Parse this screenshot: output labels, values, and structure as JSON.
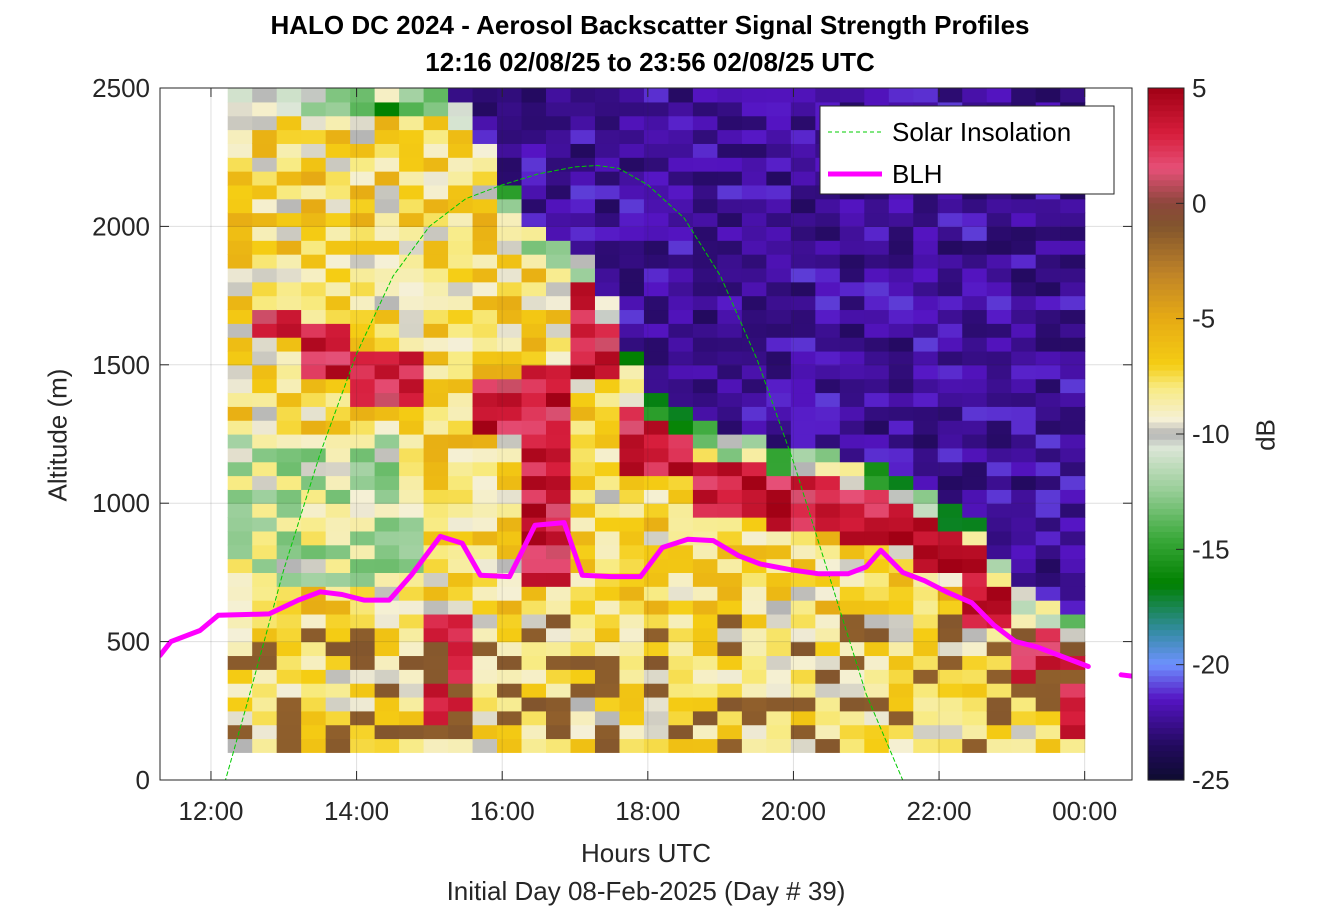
{
  "chart_data": {
    "type": "heatmap",
    "title": "HALO DC 2024 - Aerosol Backscatter Signal Strength Profiles",
    "subtitle": "12:16 02/08/25 to 23:56 02/08/25  UTC",
    "xlabel": "Hours UTC",
    "xlabel2": "Initial Day 08-Feb-2025 (Day # 39)",
    "ylabel": "Altitude (m)",
    "colorbar_label": "dB",
    "xlim": [
      11.3,
      24.65
    ],
    "ylim": [
      0,
      2500
    ],
    "x_ticks": [
      12,
      14,
      16,
      18,
      20,
      22,
      24
    ],
    "x_tick_labels": [
      "12:00",
      "14:00",
      "16:00",
      "18:00",
      "20:00",
      "22:00",
      "00:00"
    ],
    "y_ticks": [
      0,
      500,
      1000,
      1500,
      2000,
      2500
    ],
    "y_tick_labels": [
      "0",
      "500",
      "1000",
      "1500",
      "2000",
      "2500"
    ],
    "clim": [
      -25,
      5
    ],
    "cb_ticks": [
      5,
      0,
      -5,
      -10,
      -15,
      -20,
      -25
    ],
    "cb_tick_labels": [
      "5",
      "0",
      "-5",
      "-10",
      "-15",
      "-20",
      "-25"
    ],
    "grid": true,
    "legend_position": "top-right",
    "grid_x_range": [
      12.23,
      24.0
    ],
    "grid_y_range": [
      100,
      2500
    ],
    "grid_columns": 35,
    "grid_rows": 48,
    "profiles": [
      {
        "t": 12.23,
        "top": 2500,
        "strong": []
      },
      {
        "t": 13.0,
        "top": 2500,
        "strong": [
          [
            1600,
            1700
          ]
        ]
      },
      {
        "t": 13.5,
        "top": 2500,
        "strong": [
          [
            1450,
            1650
          ]
        ]
      },
      {
        "t": 14.5,
        "top": 2500,
        "strong": [
          [
            1350,
            1550
          ]
        ]
      },
      {
        "t": 15.2,
        "top": 2500,
        "strong": [
          [
            150,
            600
          ]
        ]
      },
      {
        "t": 15.8,
        "top": 2300,
        "strong": [
          [
            1250,
            1450
          ]
        ]
      },
      {
        "t": 16.5,
        "top": 1950,
        "strong": [
          [
            700,
            1500
          ]
        ]
      },
      {
        "t": 17.2,
        "top": 1900,
        "strong": [
          [
            1450,
            1800
          ]
        ]
      },
      {
        "t": 18.0,
        "top": 1400,
        "strong": [
          [
            1100,
            1350
          ]
        ]
      },
      {
        "t": 19.0,
        "top": 1250,
        "strong": [
          [
            950,
            1150
          ]
        ]
      },
      {
        "t": 20.0,
        "top": 1200,
        "strong": [
          [
            900,
            1100
          ]
        ]
      },
      {
        "t": 21.0,
        "top": 1150,
        "strong": [
          [
            850,
            1050
          ]
        ]
      },
      {
        "t": 22.0,
        "top": 1050,
        "strong": [
          [
            750,
            1000
          ]
        ]
      },
      {
        "t": 22.6,
        "top": 900,
        "strong": [
          [
            550,
            850
          ]
        ]
      },
      {
        "t": 23.3,
        "top": 650,
        "strong": [
          [
            350,
            550
          ]
        ]
      },
      {
        "t": 24.0,
        "top": 600,
        "strong": [
          [
            150,
            550
          ]
        ]
      }
    ],
    "series": [
      {
        "name": "Solar Insolation",
        "color": "#00cc00",
        "style": "dashed",
        "x": [
          11.3,
          12.2,
          12.5,
          13.0,
          13.5,
          14.0,
          14.5,
          15.0,
          15.5,
          16.0,
          16.5,
          17.0,
          17.3,
          17.6,
          18.0,
          18.5,
          19.0,
          19.5,
          20.0,
          20.5,
          21.0,
          21.5,
          22.0,
          22.5,
          24.65
        ],
        "y": [
          0,
          0,
          280,
          760,
          1180,
          1540,
          1820,
          2000,
          2100,
          2150,
          2190,
          2215,
          2220,
          2210,
          2150,
          2030,
          1820,
          1520,
          1150,
          730,
          310,
          0,
          0,
          0,
          0
        ]
      },
      {
        "name": "BLH",
        "color": "#ff00ff",
        "style": "solid",
        "x": [
          11.3,
          11.45,
          11.85,
          12.1,
          12.8,
          13.2,
          13.5,
          13.8,
          14.1,
          14.45,
          14.75,
          15.15,
          15.45,
          15.7,
          16.1,
          16.45,
          16.85,
          17.1,
          17.5,
          17.9,
          18.2,
          18.55,
          18.9,
          19.25,
          19.55,
          19.95,
          20.35,
          20.75,
          21.0,
          21.2,
          21.5,
          21.8,
          22.1,
          22.45,
          22.75,
          23.05,
          23.35,
          23.65,
          24.05
        ],
        "y": [
          450,
          500,
          540,
          595,
          600,
          650,
          680,
          670,
          650,
          650,
          740,
          880,
          855,
          740,
          735,
          920,
          930,
          740,
          735,
          735,
          840,
          870,
          865,
          810,
          780,
          760,
          745,
          745,
          770,
          830,
          750,
          720,
          680,
          640,
          560,
          500,
          480,
          450,
          410
        ]
      },
      {
        "name": "BLH (fragment)",
        "color": "#ff00ff",
        "style": "solid",
        "x": [
          24.5,
          24.65
        ],
        "y": [
          380,
          375
        ]
      }
    ],
    "legend": [
      {
        "label": "Solar Insolation",
        "series": "Solar Insolation"
      },
      {
        "label": "BLH",
        "series": "BLH"
      }
    ]
  }
}
